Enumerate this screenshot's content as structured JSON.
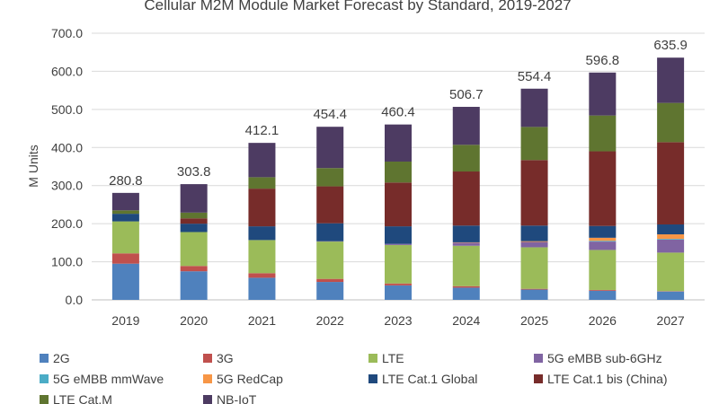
{
  "chart_data": {
    "type": "bar",
    "stacked": true,
    "title": "Cellular M2M Module Market Forecast by Standard, 2019-2027",
    "xlabel": "",
    "ylabel": "M Units",
    "ylim": [
      0,
      700
    ],
    "y_ticks": [
      "0.0",
      "100.0",
      "200.0",
      "300.0",
      "400.0",
      "500.0",
      "600.0",
      "700.0"
    ],
    "grid": true,
    "legend_position": "bottom",
    "categories": [
      "2019",
      "2020",
      "2021",
      "2022",
      "2023",
      "2024",
      "2025",
      "2026",
      "2027"
    ],
    "totals": [
      "280.8",
      "303.8",
      "412.1",
      "454.4",
      "460.4",
      "506.7",
      "554.4",
      "596.8",
      "635.9"
    ],
    "series": [
      {
        "name": "2G",
        "color": "#4f81bd",
        "values": [
          95,
          75,
          58,
          47,
          38,
          32,
          27,
          24,
          22
        ]
      },
      {
        "name": "3G",
        "color": "#c0504d",
        "values": [
          27,
          14,
          12,
          8,
          5,
          4,
          2,
          2,
          1
        ]
      },
      {
        "name": "LTE",
        "color": "#9bbb59",
        "values": [
          84,
          89,
          87,
          98,
          101,
          106,
          109,
          105,
          101
        ]
      },
      {
        "name": "5G eMBB sub-6GHz",
        "color": "#8064a2",
        "values": [
          0,
          0,
          0,
          1,
          3,
          8,
          14,
          22,
          34
        ]
      },
      {
        "name": "5G eMBB mmWave",
        "color": "#4bacc6",
        "values": [
          0,
          0,
          0,
          0,
          0,
          0,
          0,
          2,
          2
        ]
      },
      {
        "name": "5G RedCap",
        "color": "#f79646",
        "values": [
          0,
          0,
          0,
          0,
          0,
          1,
          2,
          8,
          12
        ]
      },
      {
        "name": "LTE Cat.1 Global",
        "color": "#1f497d",
        "values": [
          20,
          22,
          36,
          47,
          46,
          44,
          41,
          31,
          26
        ]
      },
      {
        "name": "LTE Cat.1 bis (China)",
        "color": "#772c2a",
        "values": [
          0,
          14,
          99,
          97,
          115,
          142,
          172,
          196,
          216
        ]
      },
      {
        "name": "LTE Cat.M",
        "color": "#5f7530",
        "values": [
          9,
          15,
          30,
          48,
          55,
          70,
          87,
          94,
          103
        ]
      },
      {
        "name": "NB-IoT",
        "color": "#4d3b62",
        "values": [
          45.8,
          74.8,
          90.1,
          108.4,
          97.4,
          99.7,
          100.4,
          112.8,
          118.9
        ]
      }
    ]
  }
}
